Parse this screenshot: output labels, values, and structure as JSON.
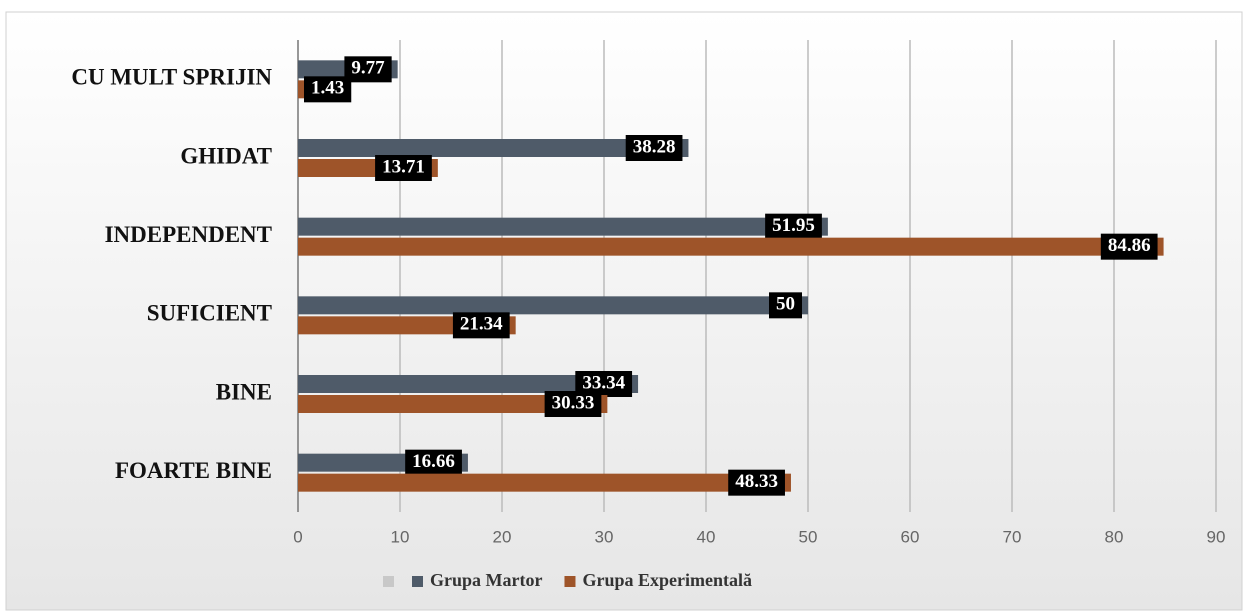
{
  "chart_data": {
    "type": "hbar",
    "categories": [
      "CU MULT SPRIJIN",
      "GHIDAT",
      "INDEPENDENT",
      "SUFICIENT",
      "BINE",
      "FOARTE BINE"
    ],
    "series": [
      {
        "name": "Grupa Martor",
        "color": "#4f5b69",
        "values": [
          9.77,
          38.28,
          51.95,
          50,
          33.34,
          16.66
        ]
      },
      {
        "name": "Grupa Experimentală",
        "color": "#9e5429",
        "values": [
          1.43,
          13.71,
          84.86,
          21.34,
          30.33,
          48.33
        ]
      }
    ],
    "xlim": [
      0,
      90
    ],
    "xticks": [
      0,
      10,
      20,
      30,
      40,
      50,
      60,
      70,
      80,
      90
    ],
    "grid": true
  }
}
